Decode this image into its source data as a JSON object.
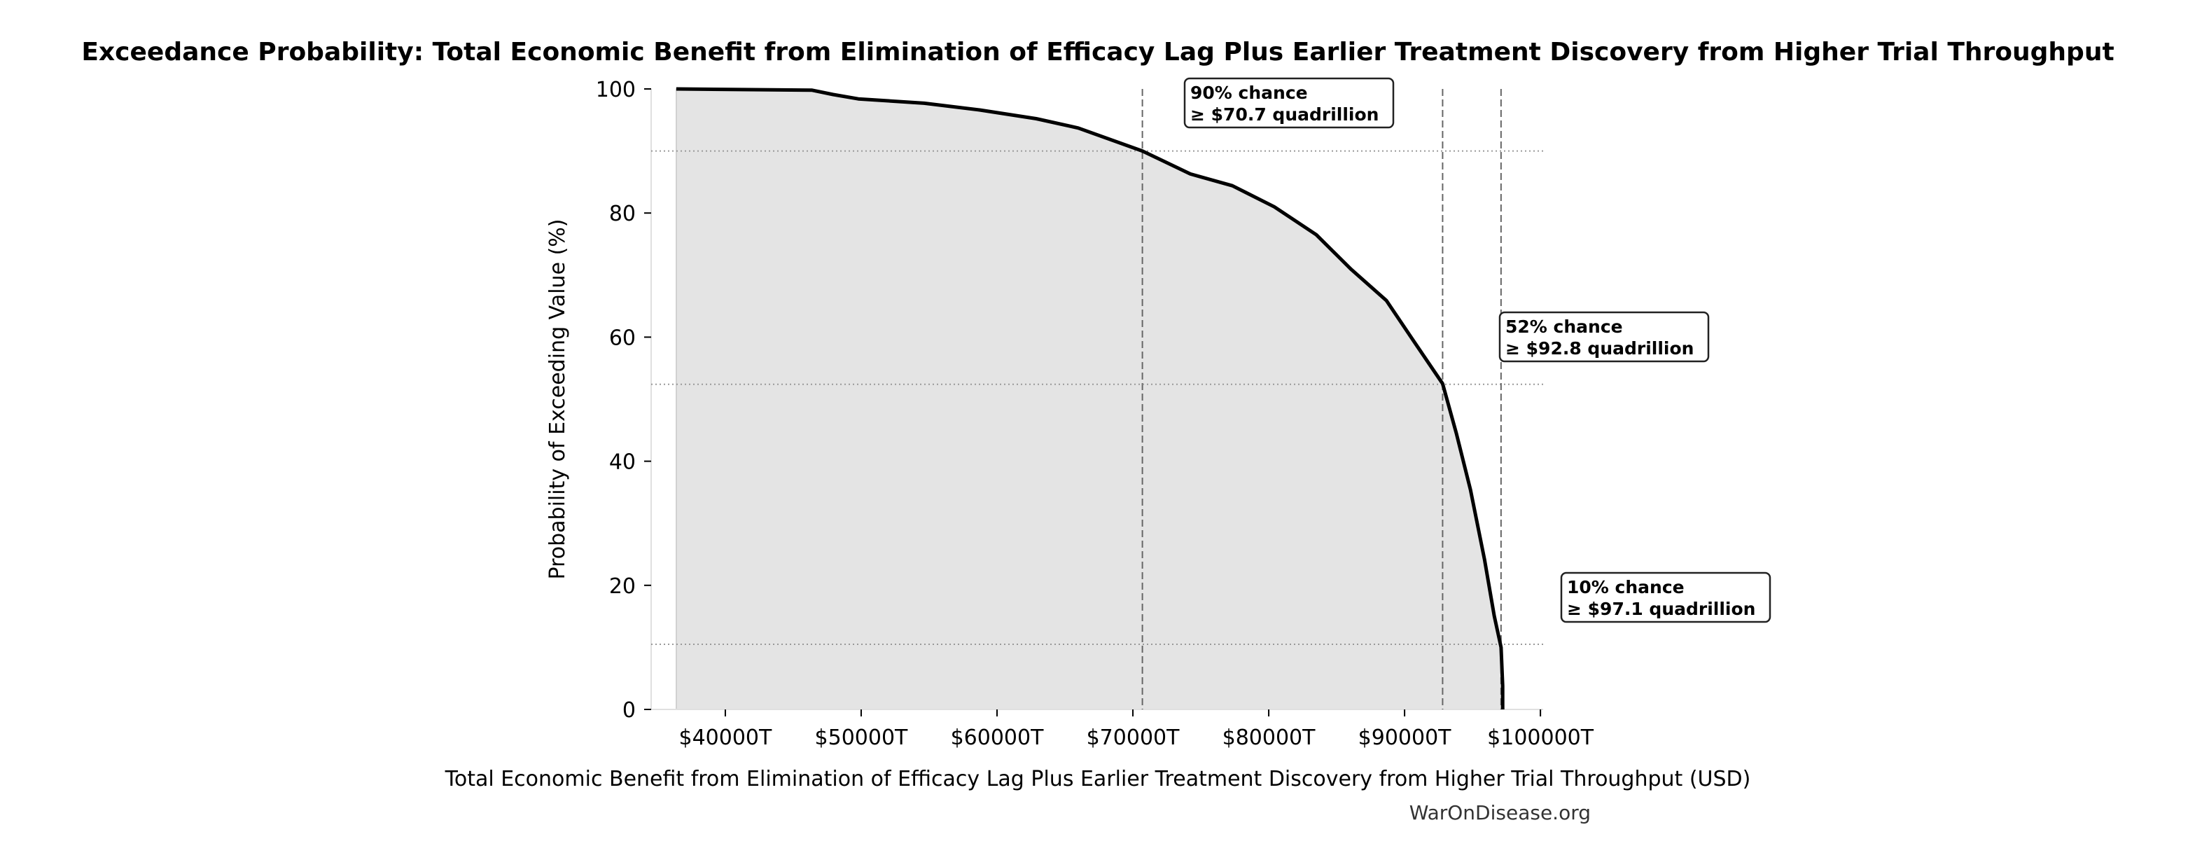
{
  "chart_data": {
    "type": "area",
    "title": "Exceedance Probability: Total Economic Benefit from Elimination of Efficacy Lag Plus Earlier Treatment Discovery from Higher Trial Throughput",
    "xlabel": "Total Economic Benefit from Elimination of Efficacy Lag Plus Earlier Treatment Discovery from Higher Trial Throughput (USD)",
    "ylabel": "Probability of Exceeding Value (%)",
    "xlim": [
      34540,
      100200
    ],
    "ylim": [
      0,
      100
    ],
    "x_ticks": [
      {
        "value": 40000,
        "label": "$40000T"
      },
      {
        "value": 50000,
        "label": "$50000T"
      },
      {
        "value": 60000,
        "label": "$60000T"
      },
      {
        "value": 70000,
        "label": "$70000T"
      },
      {
        "value": 80000,
        "label": "$80000T"
      },
      {
        "value": 90000,
        "label": "$90000T"
      },
      {
        "value": 100000,
        "label": "$100000T"
      }
    ],
    "y_ticks": [
      {
        "value": 0,
        "label": "0"
      },
      {
        "value": 20,
        "label": "20"
      },
      {
        "value": 40,
        "label": "40"
      },
      {
        "value": 60,
        "label": "60"
      },
      {
        "value": 80,
        "label": "80"
      },
      {
        "value": 100,
        "label": "100"
      }
    ],
    "grid": false,
    "line_color": "#000000",
    "fill_color": "#e4e4e4",
    "series": [
      {
        "x": [
          36390,
          46390,
          47940,
          49790,
          54640,
          58760,
          62890,
          65980,
          70700,
          74230,
          77320,
          80410,
          83500,
          86080,
          88660,
          90720,
          92800,
          93810,
          94850,
          95880,
          96600,
          97100,
          97220,
          97220
        ],
        "y": [
          100,
          99.8,
          99.1,
          98.4,
          97.7,
          96.6,
          95.2,
          93.7,
          90,
          86.3,
          84.4,
          81,
          76.5,
          70.9,
          65.9,
          59.2,
          52.5,
          44.5,
          35.4,
          24.2,
          15.1,
          10,
          3.8,
          0
        ]
      }
    ],
    "annotations": [
      {
        "probability": 90,
        "value": 70700,
        "line1": "90% chance",
        "line2": "≥ $70.7 quadrillion"
      },
      {
        "probability": 52.4,
        "value": 92800,
        "line1": "52% chance",
        "line2": "≥ $92.8 quadrillion"
      },
      {
        "probability": 10.5,
        "value": 97100,
        "line1": "10% chance",
        "line2": "≥ $97.1 quadrillion"
      }
    ],
    "watermark": "WarOnDisease.org"
  }
}
